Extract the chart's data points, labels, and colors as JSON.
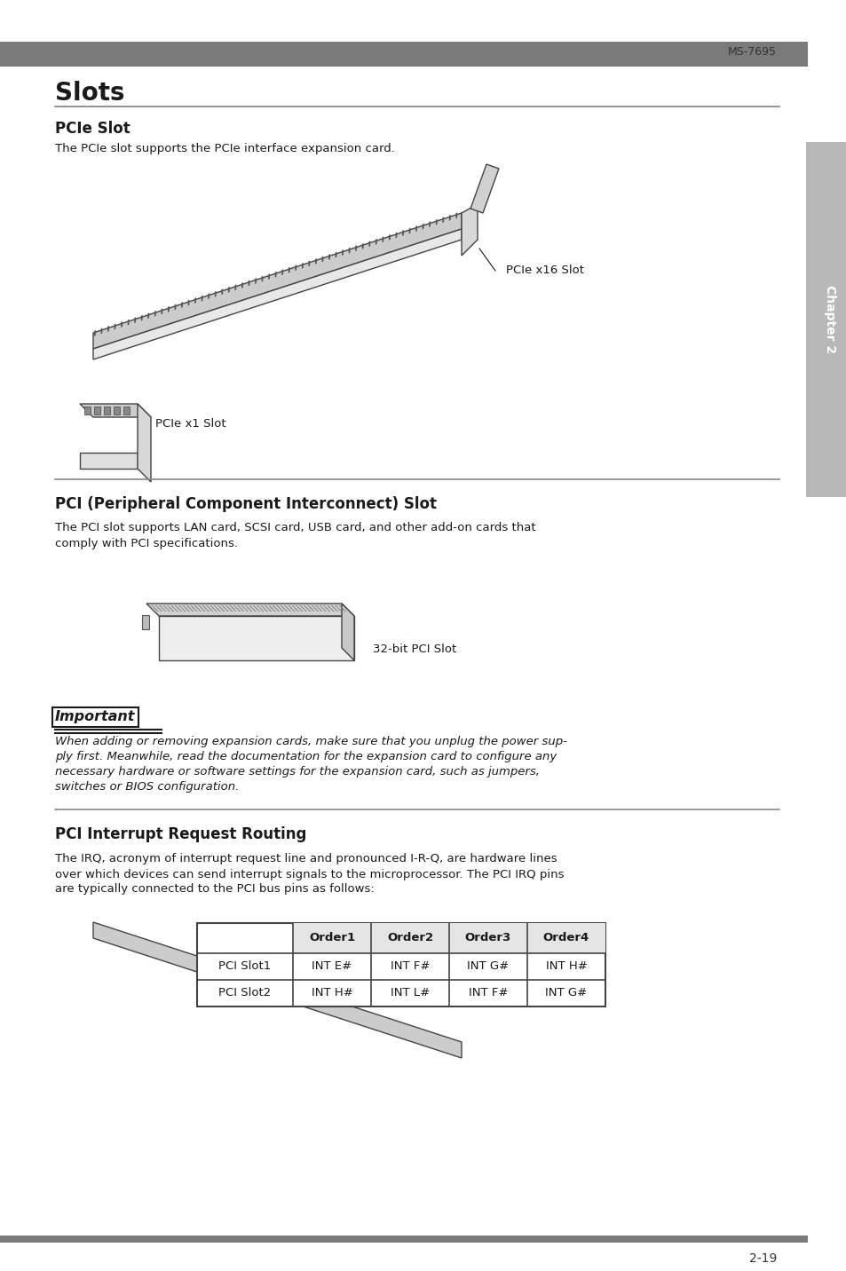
{
  "page_num": "MS-7695",
  "footer": "2-19",
  "bg_color": "#ffffff",
  "header_bar_color": "#7a7a7a",
  "sidebar_color": "#b8b8b8",
  "title": "Slots",
  "section1_title": "PCIe Slot",
  "section1_body": "The PCIe slot supports the PCIe interface expansion card.",
  "pcie_x16_label": "PCIe x16 Slot",
  "pcie_x1_label": "PCIe x1 Slot",
  "section2_title": "PCI (Peripheral Component Interconnect) Slot",
  "section2_body1": "The PCI slot supports LAN card, SCSI card, USB card, and other add-on cards that",
  "section2_body2": "comply with PCI specifications.",
  "pci_slot_label": "32-bit PCI Slot",
  "important_title": "Important",
  "important_body1": "When adding or removing expansion cards, make sure that you unplug the power sup-",
  "important_body2": "ply first. Meanwhile, read the documentation for the expansion card to configure any",
  "important_body3": "necessary hardware or software settings for the expansion card, such as jumpers,",
  "important_body4": "switches or BIOS configuration.",
  "section3_title": "PCI Interrupt Request Routing",
  "section3_body1": "The IRQ, acronym of interrupt request line and pronounced I-R-Q, are hardware lines",
  "section3_body2": "over which devices can send interrupt signals to the microprocessor. The PCI IRQ pins",
  "section3_body3": "are typically connected to the PCI bus pins as follows:",
  "table_headers": [
    "",
    "Order1",
    "Order2",
    "Order3",
    "Order4"
  ],
  "table_row1": [
    "PCI Slot1",
    "INT E#",
    "INT F#",
    "INT G#",
    "INT H#"
  ],
  "table_row2": [
    "PCI Slot2",
    "INT H#",
    "INT L#",
    "INT F#",
    "INT G#"
  ],
  "divider_color": "#888888",
  "text_color": "#1a1a1a",
  "chapter_label": "Chapter 2"
}
